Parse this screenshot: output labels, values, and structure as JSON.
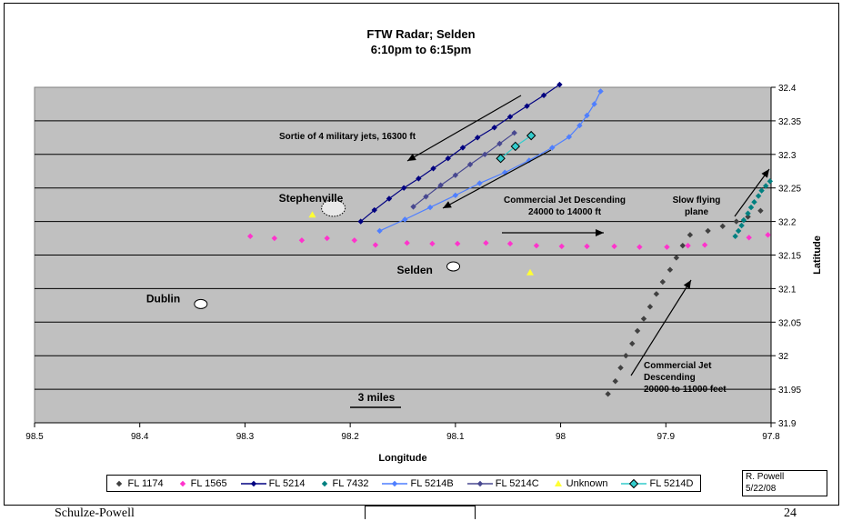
{
  "chart_data": {
    "type": "scatter",
    "title_line1": "FTW Radar; Selden",
    "title_line2": "6:10pm to 6:15pm",
    "xlabel": "Longitude",
    "ylabel": "Latitude",
    "xlim": [
      98.5,
      97.8
    ],
    "ylim": [
      31.9,
      32.4
    ],
    "x_reversed": true,
    "y_axis_side": "right",
    "xticks": [
      "98.5",
      "98.4",
      "98.3",
      "98.2",
      "98.1",
      "98",
      "97.9",
      "97.8"
    ],
    "yticks": [
      "31.9",
      "31.95",
      "32",
      "32.05",
      "32.1",
      "32.15",
      "32.2",
      "32.25",
      "32.3",
      "32.35",
      "32.4"
    ],
    "grid": "horizontal",
    "legend_position": "bottom",
    "series": [
      {
        "name": "FL 1174",
        "color": "#404040",
        "marker": "diamond",
        "line": false,
        "points": [
          [
            97.955,
            31.943
          ],
          [
            97.948,
            31.962
          ],
          [
            97.943,
            31.982
          ],
          [
            97.938,
            32.0
          ],
          [
            97.932,
            32.018
          ],
          [
            97.927,
            32.037
          ],
          [
            97.921,
            32.055
          ],
          [
            97.915,
            32.073
          ],
          [
            97.909,
            32.092
          ],
          [
            97.903,
            32.11
          ],
          [
            97.896,
            32.128
          ],
          [
            97.89,
            32.146
          ],
          [
            97.884,
            32.164
          ],
          [
            97.877,
            32.18
          ],
          [
            97.86,
            32.186
          ],
          [
            97.846,
            32.193
          ],
          [
            97.833,
            32.2
          ],
          [
            97.822,
            32.207
          ],
          [
            97.81,
            32.216
          ]
        ]
      },
      {
        "name": "FL 1565",
        "color": "#ff33cc",
        "marker": "diamond",
        "line": false,
        "points": [
          [
            98.295,
            32.178
          ],
          [
            98.272,
            32.175
          ],
          [
            98.246,
            32.172
          ],
          [
            98.222,
            32.175
          ],
          [
            98.196,
            32.172
          ],
          [
            98.176,
            32.165
          ],
          [
            98.146,
            32.168
          ],
          [
            98.122,
            32.167
          ],
          [
            98.098,
            32.167
          ],
          [
            98.071,
            32.168
          ],
          [
            98.048,
            32.167
          ],
          [
            98.023,
            32.164
          ],
          [
            97.999,
            32.163
          ],
          [
            97.975,
            32.163
          ],
          [
            97.949,
            32.163
          ],
          [
            97.925,
            32.162
          ],
          [
            97.899,
            32.162
          ],
          [
            97.879,
            32.164
          ],
          [
            97.863,
            32.165
          ],
          [
            97.821,
            32.176
          ],
          [
            97.803,
            32.18
          ]
        ]
      },
      {
        "name": "FL 5214",
        "color": "#000080",
        "marker": "diamond",
        "line": true,
        "points": [
          [
            98.19,
            32.2
          ],
          [
            98.177,
            32.217
          ],
          [
            98.163,
            32.234
          ],
          [
            98.149,
            32.25
          ],
          [
            98.135,
            32.264
          ],
          [
            98.121,
            32.279
          ],
          [
            98.107,
            32.294
          ],
          [
            98.093,
            32.31
          ],
          [
            98.079,
            32.325
          ],
          [
            98.063,
            32.34
          ],
          [
            98.048,
            32.356
          ],
          [
            98.032,
            32.372
          ],
          [
            98.016,
            32.388
          ],
          [
            98.001,
            32.404
          ]
        ]
      },
      {
        "name": "FL 7432",
        "color": "#008080",
        "marker": "diamond",
        "line": false,
        "points": [
          [
            97.834,
            32.178
          ],
          [
            97.831,
            32.186
          ],
          [
            97.828,
            32.194
          ],
          [
            97.826,
            32.202
          ],
          [
            97.822,
            32.212
          ],
          [
            97.819,
            32.221
          ],
          [
            97.816,
            32.229
          ],
          [
            97.812,
            32.238
          ],
          [
            97.809,
            32.246
          ],
          [
            97.805,
            32.253
          ],
          [
            97.801,
            32.26
          ]
        ]
      },
      {
        "name": "FL 5214B",
        "color": "#4f7fff",
        "marker": "diamond",
        "line": true,
        "points": [
          [
            98.172,
            32.186
          ],
          [
            98.148,
            32.203
          ],
          [
            98.124,
            32.221
          ],
          [
            98.1,
            32.239
          ],
          [
            98.077,
            32.257
          ],
          [
            98.053,
            32.273
          ],
          [
            98.03,
            32.291
          ],
          [
            98.008,
            32.31
          ],
          [
            97.992,
            32.326
          ],
          [
            97.982,
            32.343
          ],
          [
            97.975,
            32.358
          ],
          [
            97.968,
            32.375
          ],
          [
            97.962,
            32.394
          ]
        ]
      },
      {
        "name": "FL 5214C",
        "color": "#484890",
        "marker": "diamond",
        "line": true,
        "points": [
          [
            98.14,
            32.222
          ],
          [
            98.128,
            32.237
          ],
          [
            98.114,
            32.254
          ],
          [
            98.1,
            32.269
          ],
          [
            98.086,
            32.285
          ],
          [
            98.072,
            32.3
          ],
          [
            98.058,
            32.316
          ],
          [
            98.044,
            32.332
          ]
        ]
      },
      {
        "name": "Unknown",
        "color": "#ffff33",
        "marker": "triangle",
        "line": false,
        "points": [
          [
            98.236,
            32.21
          ],
          [
            98.029,
            32.124
          ]
        ]
      },
      {
        "name": "FL 5214D",
        "color": "#33cccc",
        "marker": "diamond-large",
        "line": true,
        "points": [
          [
            98.057,
            32.294
          ],
          [
            98.043,
            32.312
          ],
          [
            98.028,
            32.328
          ]
        ]
      }
    ],
    "places": [
      {
        "name": "Stephenville",
        "lon": 98.216,
        "lat": 32.22,
        "shape": "ellipse-large"
      },
      {
        "name": "Selden",
        "lon": 98.102,
        "lat": 32.133,
        "shape": "ellipse"
      },
      {
        "name": "Dublin",
        "lon": 98.342,
        "lat": 32.077,
        "shape": "ellipse"
      }
    ],
    "annotations": [
      {
        "id": "sortie",
        "text": [
          "Sortie of 4 military jets, 16300 ft"
        ]
      },
      {
        "id": "commercial-high",
        "text": [
          "Commercial Jet Descending",
          "24000 to 14000 ft"
        ]
      },
      {
        "id": "slow",
        "text": [
          "Slow flying",
          "plane"
        ]
      },
      {
        "id": "commercial-low",
        "text": [
          "Commercial Jet",
          "Descending",
          "20000 to 11000 feet"
        ]
      },
      {
        "id": "scale",
        "text": [
          "3 miles"
        ]
      }
    ]
  },
  "credit": {
    "name": "R. Powell",
    "date": "5/22/08"
  },
  "footer": {
    "left": "Schulze-Powell",
    "right": "24"
  }
}
